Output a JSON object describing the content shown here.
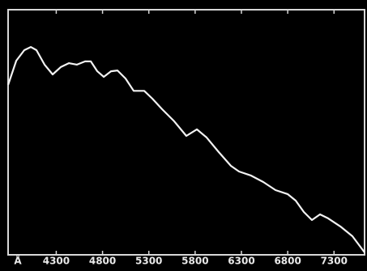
{
  "chart_data": {
    "type": "line",
    "x_label": "Å",
    "x": [
      3780,
      3868,
      3955,
      4025,
      4086,
      4174,
      4261,
      4349,
      4436,
      4524,
      4611,
      4673,
      4743,
      4813,
      4891,
      4961,
      5049,
      5136,
      5250,
      5338,
      5443,
      5574,
      5705,
      5819,
      5924,
      6055,
      6186,
      6274,
      6405,
      6536,
      6668,
      6799,
      6886,
      6974,
      7061,
      7149,
      7236,
      7368,
      7499,
      7630
    ],
    "values": [
      69.3,
      79.2,
      83.5,
      84.8,
      83.5,
      77.6,
      73.6,
      76.6,
      78.2,
      77.6,
      78.9,
      78.9,
      74.9,
      72.6,
      74.9,
      75.2,
      71.9,
      66.9,
      66.9,
      63.7,
      59.4,
      54.5,
      48.5,
      51.2,
      47.9,
      41.9,
      36.3,
      34.0,
      32.3,
      29.7,
      26.4,
      24.8,
      22.1,
      17.5,
      14.2,
      16.5,
      14.9,
      11.6,
      7.6,
      1.0
    ],
    "color": "#f2f2f2",
    "xlim": [
      3780,
      7630
    ],
    "xticks": [
      4300,
      4800,
      5300,
      5800,
      6300,
      6800,
      7300
    ],
    "ylim": [
      0,
      100
    ]
  }
}
